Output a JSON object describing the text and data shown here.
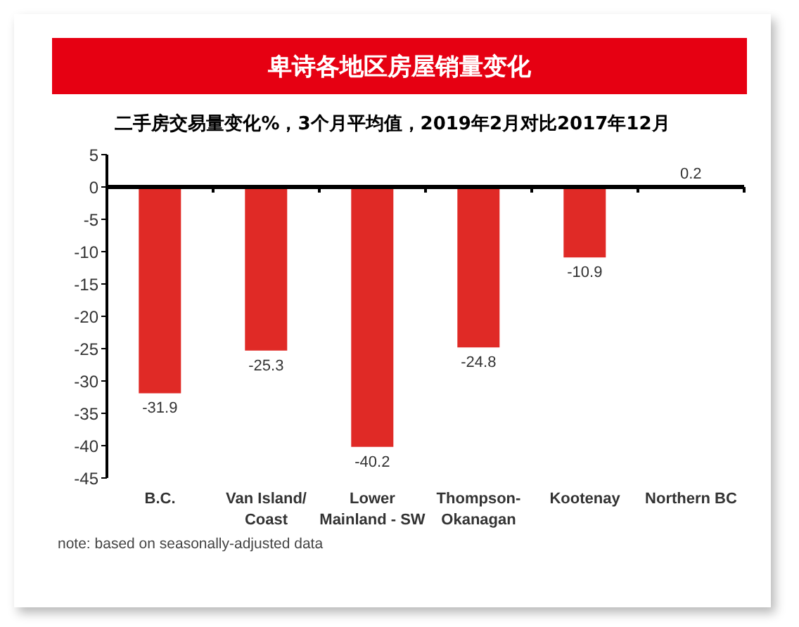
{
  "chart_data": {
    "type": "bar",
    "title": "卑诗各地区房屋销量变化",
    "subtitle": "二手房交易量变化%，3个月平均值，2019年2月对比2017年12月",
    "categories": [
      "B.C.",
      "Van Island/ Coast",
      "Lower Mainland - SW",
      "Thompson-Okanagan",
      "Kootenay",
      "Northern BC"
    ],
    "values": [
      -31.9,
      -25.3,
      -40.2,
      -24.8,
      -10.9,
      0.2
    ],
    "color": "#e02a26",
    "ylim": [
      -45,
      5
    ],
    "yticks": [
      -45,
      -40,
      -35,
      -30,
      -25,
      -20,
      -15,
      -10,
      -5,
      0,
      5
    ],
    "data_labels": true,
    "annotations": [
      "note: based on seasonally-adjusted data"
    ]
  }
}
